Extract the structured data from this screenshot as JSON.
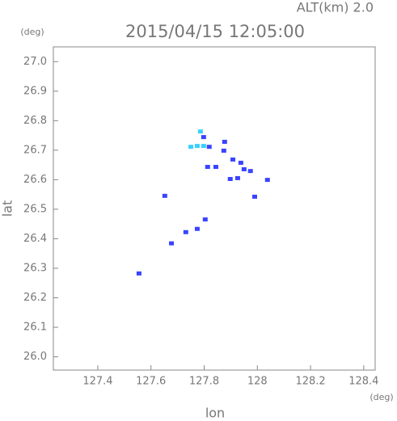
{
  "chart_data": {
    "type": "scatter",
    "title": "2015/04/15 12:05:00",
    "subtitle": "ALT(km) 2.0",
    "y_unit": "(deg)",
    "x_unit": "(deg)",
    "x_label": "lon",
    "y_label": "lat",
    "xlim": [
      127.233,
      128.443
    ],
    "ylim": [
      25.955,
      27.05
    ],
    "xticks": [
      127.4,
      127.6,
      127.8,
      128.0,
      128.2,
      128.4
    ],
    "yticks": [
      {
        "value": 26.0,
        "label": "26.0"
      },
      26.1,
      26.2,
      26.3,
      26.4,
      26.5,
      26.6,
      26.7,
      26.8,
      26.9,
      {
        "value": 27.0,
        "label": "27.0"
      }
    ],
    "series": [
      {
        "color": "#3ad0ff",
        "x": [
          127.75,
          127.774,
          127.798,
          127.786
        ],
        "values": [
          26.71,
          26.713,
          26.713,
          26.762
        ]
      },
      {
        "color": "#3a44ff",
        "x": [
          127.819,
          127.798,
          127.874,
          127.877,
          127.908,
          127.938,
          127.95,
          127.974,
          127.813,
          127.844,
          127.99,
          128.038,
          127.652,
          127.774,
          127.804,
          127.731,
          127.677,
          127.555,
          127.898,
          127.926
        ],
        "values": [
          26.71,
          26.743,
          26.697,
          26.727,
          26.667,
          26.656,
          26.634,
          26.628,
          26.642,
          26.642,
          26.541,
          26.598,
          26.544,
          26.432,
          26.464,
          26.421,
          26.383,
          26.281,
          26.601,
          26.604
        ]
      }
    ]
  }
}
